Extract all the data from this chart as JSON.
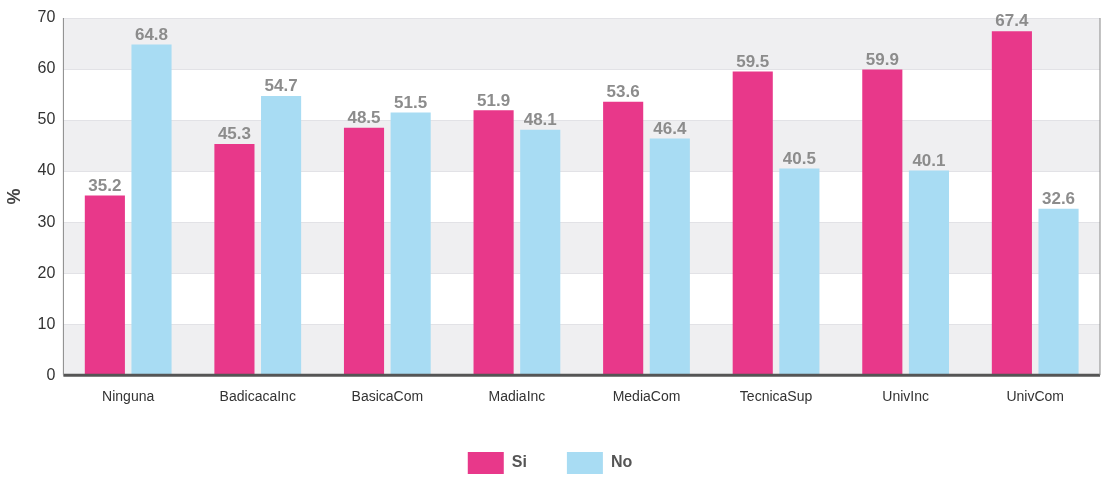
{
  "chart_data": {
    "type": "bar",
    "ylabel": "%",
    "categories": [
      "Ninguna",
      "BadicacaInc",
      "BasicaCom",
      "MadiaInc",
      "MediaCom",
      "TecnicaSup",
      "UnivInc",
      "UnivCom"
    ],
    "series": [
      {
        "name": "Si",
        "color": "#e8388a",
        "values": [
          35.2,
          45.3,
          48.5,
          51.9,
          53.6,
          59.5,
          59.9,
          67.4
        ]
      },
      {
        "name": "No",
        "color": "#a8dcf3",
        "values": [
          64.8,
          54.7,
          51.5,
          48.1,
          46.4,
          40.5,
          40.1,
          32.6
        ]
      }
    ],
    "ylim": [
      0,
      70
    ],
    "yticks": [
      0,
      10,
      20,
      30,
      40,
      50,
      60,
      70
    ],
    "grid": "y",
    "legend": "bottom",
    "data_labels": true
  }
}
